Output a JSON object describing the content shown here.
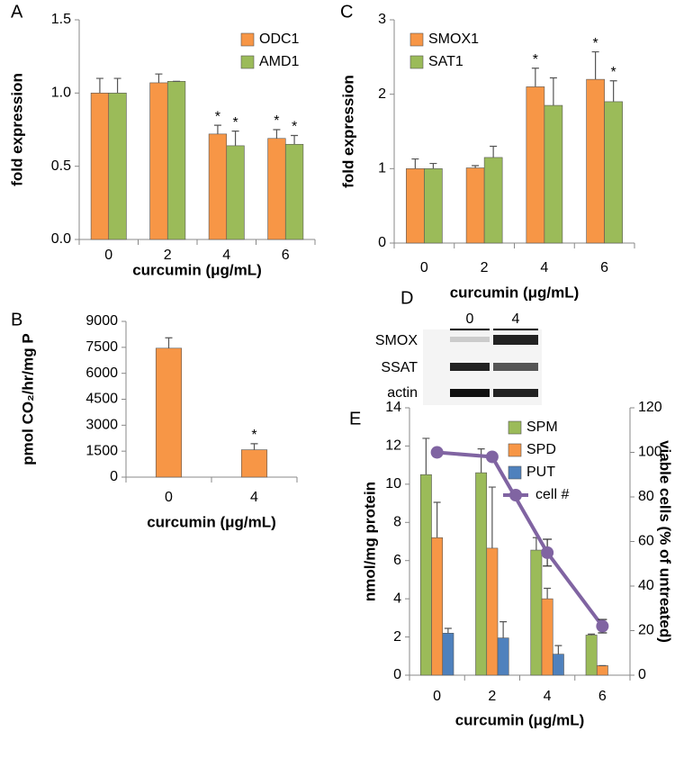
{
  "chart_data": [
    {
      "panel": "A",
      "type": "bar",
      "categories": [
        "0",
        "2",
        "4",
        "6"
      ],
      "x_label": "curcumin (μg/mL)",
      "y_label": "fold expression",
      "ylim": [
        0,
        1.5
      ],
      "yticks": [
        {
          "value": 0,
          "label": "0.0"
        },
        0.5,
        {
          "value": 1,
          "label": "1.0"
        },
        1.5
      ],
      "legend": "top-right",
      "series": [
        {
          "name": "ODC1",
          "color": "#f79646",
          "values": [
            1.0,
            1.07,
            0.72,
            0.69
          ],
          "errors": [
            0.1,
            0.06,
            0.06,
            0.06
          ],
          "marks": [
            null,
            null,
            "*",
            "*"
          ]
        },
        {
          "name": "AMD1",
          "color": "#9bbb59",
          "values": [
            1.0,
            1.08,
            0.64,
            0.65
          ],
          "errors": [
            0.1,
            0,
            0.1,
            0.06
          ],
          "marks": [
            null,
            null,
            "*",
            "*"
          ]
        }
      ]
    },
    {
      "panel": "C",
      "type": "bar",
      "categories": [
        "0",
        "2",
        "4",
        "6"
      ],
      "x_label": "curcumin (μg/mL)",
      "y_label": "fold expression",
      "ylim": [
        0,
        3
      ],
      "yticks": [
        0,
        1,
        2,
        3
      ],
      "legend": "top-left",
      "series": [
        {
          "name": "SMOX1",
          "color": "#f79646",
          "values": [
            1.0,
            1.01,
            2.1,
            2.2
          ],
          "errors": [
            0.13,
            0.03,
            0.25,
            0.37
          ],
          "marks": [
            null,
            null,
            "*",
            "*"
          ]
        },
        {
          "name": "SAT1",
          "color": "#9bbb59",
          "values": [
            1.0,
            1.15,
            1.85,
            1.9
          ],
          "errors": [
            0.07,
            0.15,
            0.37,
            0.28
          ],
          "marks": [
            null,
            null,
            null,
            "*"
          ]
        }
      ]
    },
    {
      "panel": "B",
      "type": "bar",
      "categories": [
        "0",
        "4"
      ],
      "x_label": "curcumin (μg/mL)",
      "y_label": "pmol CO₂/hr/mg P",
      "ylim": [
        0,
        9000
      ],
      "yticks": [
        0,
        1500,
        3000,
        4500,
        6000,
        7500,
        9000
      ],
      "series": [
        {
          "color": "#f79646",
          "values": [
            7450,
            1580
          ],
          "errors": [
            600,
            350
          ],
          "marks": [
            null,
            "*"
          ]
        }
      ]
    },
    {
      "panel": "E",
      "type": "bar",
      "categories": [
        "0",
        "2",
        "4",
        "6"
      ],
      "x_label": "curcumin (μg/mL)",
      "y_label": "nmol/mg protein",
      "y2_label": "viable cells (% of untreated)",
      "ylim": [
        0,
        14
      ],
      "yticks": [
        0,
        2,
        4,
        6,
        8,
        10,
        12,
        14
      ],
      "y2lim": [
        0,
        120
      ],
      "y2ticks": [
        0,
        20,
        40,
        60,
        80,
        100,
        120
      ],
      "legend": "top-right",
      "series": [
        {
          "name": "SPM",
          "color": "#9bbb59",
          "values": [
            10.5,
            10.6,
            6.55,
            2.1
          ],
          "errors": [
            1.9,
            1.25,
            0.65,
            0.05
          ]
        },
        {
          "name": "SPD",
          "color": "#f79646",
          "values": [
            7.2,
            6.65,
            4.0,
            0.5
          ],
          "errors": [
            1.85,
            3.2,
            0.55,
            0
          ]
        },
        {
          "name": "PUT",
          "color": "#4f81bd",
          "values": [
            2.2,
            1.95,
            1.1,
            null
          ],
          "errors": [
            0.25,
            0.85,
            0.45,
            null
          ]
        },
        {
          "name": "cell #",
          "color": "#8064a2",
          "type": "line",
          "axis": "y2",
          "values": [
            100,
            98,
            55,
            22
          ],
          "errors": [
            0,
            0,
            6,
            3
          ]
        }
      ]
    }
  ],
  "blot": {
    "panel": "D",
    "lanes": [
      "0",
      "4"
    ],
    "rows": [
      "SMOX",
      "SSAT",
      "actin"
    ]
  }
}
